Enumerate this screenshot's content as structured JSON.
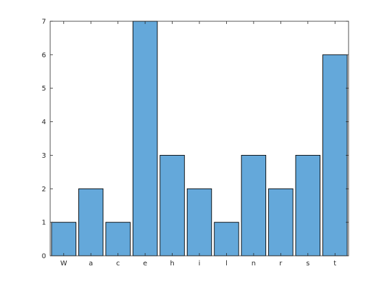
{
  "chart_data": {
    "type": "bar",
    "categories": [
      "W",
      "a",
      "c",
      "e",
      "h",
      "i",
      "l",
      "n",
      "r",
      "s",
      "t"
    ],
    "values": [
      1,
      2,
      1,
      7,
      3,
      2,
      1,
      3,
      2,
      3,
      6
    ],
    "ylim": [
      0,
      7
    ],
    "yticks": [
      "0",
      "1",
      "2",
      "3",
      "4",
      "5",
      "6",
      "7"
    ],
    "grid": false,
    "colors": {
      "bar": "#64a8da",
      "bar_edge": "#000000",
      "axis": "#262626"
    }
  }
}
